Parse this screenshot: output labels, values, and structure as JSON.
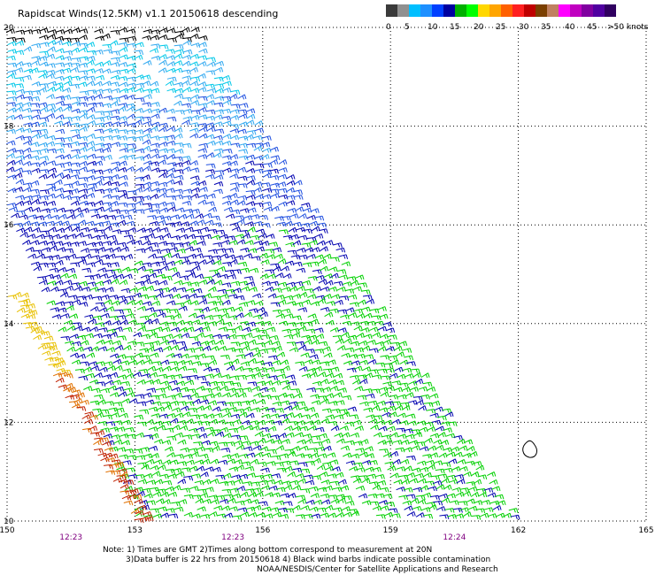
{
  "title": "Rapidscat Winds(12.5KM) v1.1 20150618 descending",
  "colorbar": {
    "colors": [
      "#3a3a3a",
      "#909090",
      "#00bfff",
      "#1e90ff",
      "#0040ff",
      "#0000a0",
      "#00b000",
      "#00ff00",
      "#ffd700",
      "#ffa500",
      "#ff6000",
      "#ff2020",
      "#c00000",
      "#7b3f00",
      "#c08060",
      "#ff00ff",
      "#c000c0",
      "#8000a0",
      "#5000a0",
      "#300060"
    ],
    "labels": [
      "0",
      "5",
      "10",
      "15",
      "20",
      "25",
      "30",
      "35",
      "40",
      "45",
      ">50 knots"
    ]
  },
  "axes": {
    "lat_ticks": [
      "20",
      "18",
      "16",
      "14",
      "12",
      "10"
    ],
    "lon_ticks": [
      "150",
      "153",
      "156",
      "159",
      "162",
      "165"
    ],
    "lat_range": [
      10,
      20
    ],
    "lon_range": [
      150,
      165
    ]
  },
  "time_labels": [
    "12:23",
    "12:23",
    "12:24"
  ],
  "notes": [
    "Note: 1) Times are GMT 2)Times along bottom correspond to measurement at 20N",
    "3)Data buffer is 22 hrs from 20150618 4) Black wind barbs indicate possible contamination",
    "NOAA/NESDIS/Center for Satellite Applications and Research"
  ],
  "colors": {
    "grid": "#000000",
    "time_label": "#800080",
    "barb_black": "#000000",
    "barb_cyan": "#00c8e8",
    "barb_lightblue": "#30a8f0",
    "barb_blue": "#2050e0",
    "barb_darkblue": "#0000b0",
    "barb_green": "#00d000",
    "barb_yellow": "#e8c000",
    "barb_orange": "#e07000",
    "barb_red": "#c02000"
  }
}
